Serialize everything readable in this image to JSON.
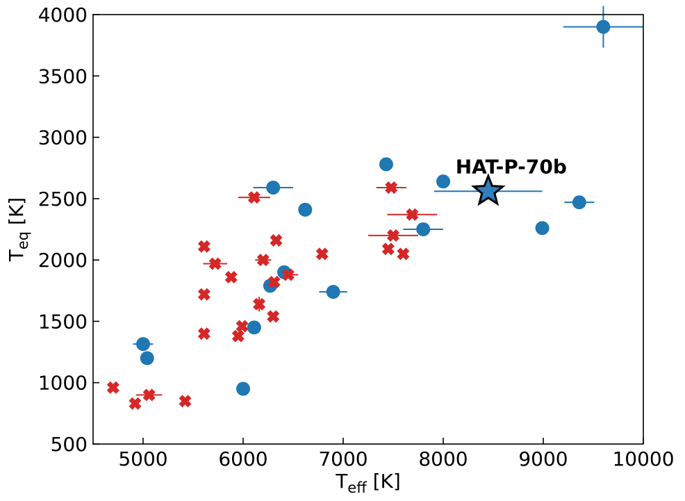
{
  "chart_data": {
    "type": "scatter",
    "title": "",
    "xlabel": {
      "main": "T",
      "sub": "eff",
      "unit": " [K]"
    },
    "ylabel": {
      "main": "T",
      "sub": "eq",
      "unit": " [K]"
    },
    "xlim": [
      4500,
      10000
    ],
    "ylim": [
      500,
      4000
    ],
    "xticks": [
      5000,
      6000,
      7000,
      8000,
      9000,
      10000
    ],
    "yticks": [
      500,
      1000,
      1500,
      2000,
      2500,
      3000,
      3500,
      4000
    ],
    "grid": false,
    "series": [
      {
        "marker": "circle",
        "color": "#1f77b4",
        "points": [
          {
            "x": 9600,
            "y": 3900,
            "xerr": 400,
            "yerr": 170
          },
          {
            "x": 7430,
            "y": 2780,
            "xerr": 60,
            "yerr": 0
          },
          {
            "x": 8000,
            "y": 2640,
            "xerr": 0,
            "yerr": 0
          },
          {
            "x": 6300,
            "y": 2590,
            "xerr": 200,
            "yerr": 0
          },
          {
            "x": 6620,
            "y": 2410,
            "xerr": 0,
            "yerr": 0
          },
          {
            "x": 9360,
            "y": 2470,
            "xerr": 150,
            "yerr": 0
          },
          {
            "x": 7800,
            "y": 2250,
            "xerr": 200,
            "yerr": 0
          },
          {
            "x": 8990,
            "y": 2260,
            "xerr": 0,
            "yerr": 50
          },
          {
            "x": 6410,
            "y": 1900,
            "xerr": 0,
            "yerr": 0
          },
          {
            "x": 6270,
            "y": 1790,
            "xerr": 0,
            "yerr": 0
          },
          {
            "x": 6900,
            "y": 1740,
            "xerr": 140,
            "yerr": 0
          },
          {
            "x": 6110,
            "y": 1450,
            "xerr": 0,
            "yerr": 0
          },
          {
            "x": 5000,
            "y": 1315,
            "xerr": 100,
            "yerr": 0
          },
          {
            "x": 5040,
            "y": 1200,
            "xerr": 0,
            "yerr": 0
          },
          {
            "x": 6000,
            "y": 950,
            "xerr": 0,
            "yerr": 0
          }
        ]
      },
      {
        "marker": "x",
        "color": "#d62728",
        "points": [
          {
            "x": 7480,
            "y": 2590,
            "xerr": 150,
            "yerr": 0
          },
          {
            "x": 6110,
            "y": 2510,
            "xerr": 160,
            "yerr": 0
          },
          {
            "x": 7690,
            "y": 2370,
            "xerr": 250,
            "yerr": 0
          },
          {
            "x": 7500,
            "y": 2200,
            "xerr": 250,
            "yerr": 0
          },
          {
            "x": 6330,
            "y": 2160,
            "xerr": 0,
            "yerr": 0
          },
          {
            "x": 5610,
            "y": 2110,
            "xerr": 0,
            "yerr": 0
          },
          {
            "x": 7450,
            "y": 2090,
            "xerr": 0,
            "yerr": 0
          },
          {
            "x": 7600,
            "y": 2050,
            "xerr": 0,
            "yerr": 0
          },
          {
            "x": 6790,
            "y": 2050,
            "xerr": 0,
            "yerr": 0
          },
          {
            "x": 6200,
            "y": 2000,
            "xerr": 80,
            "yerr": 0
          },
          {
            "x": 5720,
            "y": 1970,
            "xerr": 120,
            "yerr": 0
          },
          {
            "x": 5880,
            "y": 1860,
            "xerr": 0,
            "yerr": 0
          },
          {
            "x": 6450,
            "y": 1880,
            "xerr": 100,
            "yerr": 0
          },
          {
            "x": 6310,
            "y": 1820,
            "xerr": 0,
            "yerr": 0
          },
          {
            "x": 5610,
            "y": 1720,
            "xerr": 0,
            "yerr": 0
          },
          {
            "x": 6160,
            "y": 1640,
            "xerr": 0,
            "yerr": 60
          },
          {
            "x": 6300,
            "y": 1540,
            "xerr": 0,
            "yerr": 0
          },
          {
            "x": 5990,
            "y": 1460,
            "xerr": 0,
            "yerr": 0
          },
          {
            "x": 5610,
            "y": 1400,
            "xerr": 0,
            "yerr": 0
          },
          {
            "x": 5950,
            "y": 1380,
            "xerr": 0,
            "yerr": 0
          },
          {
            "x": 4700,
            "y": 960,
            "xerr": 0,
            "yerr": 0
          },
          {
            "x": 5060,
            "y": 900,
            "xerr": 130,
            "yerr": 0
          },
          {
            "x": 4920,
            "y": 830,
            "xerr": 0,
            "yerr": 0
          },
          {
            "x": 5420,
            "y": 850,
            "xerr": 0,
            "yerr": 0
          }
        ]
      }
    ],
    "highlight": {
      "label": "HAT-P-70b",
      "marker": "star",
      "color": "#2f7fc1",
      "x": 8450,
      "y": 2560,
      "xerr": 540,
      "yerr": 0
    }
  }
}
